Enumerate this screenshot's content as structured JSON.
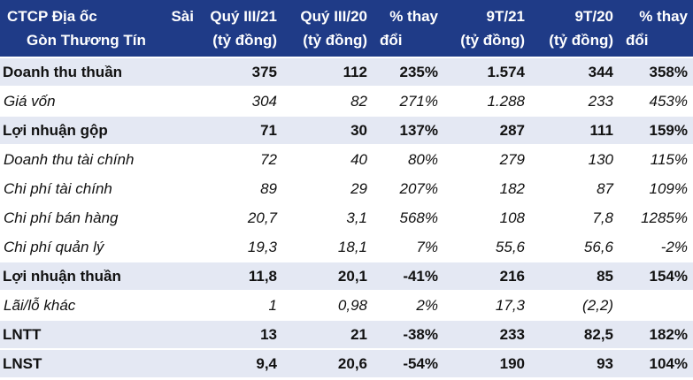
{
  "table": {
    "header": {
      "company_line1": "CTCP Địa ốc",
      "company_line1_right": "Sài",
      "company_line2": "Gòn Thương Tín",
      "columns": [
        {
          "line1": "Quý III/21",
          "line2": "(tỷ đồng)"
        },
        {
          "line1": "Quý III/20",
          "line2": "(tỷ đồng)"
        },
        {
          "line1": "% thay",
          "line2": "đổi"
        },
        {
          "line1": "9T/21",
          "line2": "(tỷ đồng)"
        },
        {
          "line1": "9T/20",
          "line2": "(tỷ đồng)"
        },
        {
          "line1": "% thay",
          "line2": "đổi"
        }
      ]
    },
    "rows": [
      {
        "label": "Doanh thu thuần",
        "style": "bold",
        "values": [
          "375",
          "112",
          "235%",
          "1.574",
          "344",
          "358%"
        ]
      },
      {
        "label": "Giá vốn",
        "style": "ital",
        "values": [
          "304",
          "82",
          "271%",
          "1.288",
          "233",
          "453%"
        ]
      },
      {
        "label": "Lợi nhuận gộp",
        "style": "bold",
        "values": [
          "71",
          "30",
          "137%",
          "287",
          "111",
          "159%"
        ]
      },
      {
        "label": "Doanh thu tài chính",
        "style": "ital",
        "values": [
          "72",
          "40",
          "80%",
          "279",
          "130",
          "115%"
        ]
      },
      {
        "label": "Chi phí tài chính",
        "style": "ital",
        "values": [
          "89",
          "29",
          "207%",
          "182",
          "87",
          "109%"
        ]
      },
      {
        "label": "Chi phí bán hàng",
        "style": "ital",
        "values": [
          "20,7",
          "3,1",
          "568%",
          "108",
          "7,8",
          "1285%"
        ]
      },
      {
        "label": "Chi phí quản lý",
        "style": "ital",
        "values": [
          "19,3",
          "18,1",
          "7%",
          "55,6",
          "56,6",
          "-2%"
        ]
      },
      {
        "label": "Lợi nhuận thuần",
        "style": "bold",
        "values": [
          "11,8",
          "20,1",
          "-41%",
          "216",
          "85",
          "154%"
        ]
      },
      {
        "label": "Lãi/lỗ khác",
        "style": "ital",
        "values": [
          "1",
          "0,98",
          "2%",
          "17,3",
          "(2,2)",
          ""
        ]
      },
      {
        "label": "LNTT",
        "style": "bold",
        "values": [
          "13",
          "21",
          "-38%",
          "233",
          "82,5",
          "182%"
        ]
      },
      {
        "label": "LNST",
        "style": "bold",
        "values": [
          "9,4",
          "20,6",
          "-54%",
          "190",
          "93",
          "104%"
        ]
      }
    ]
  },
  "colors": {
    "header_bg": "#1f3b87",
    "bold_row_bg": "#e4e8f3",
    "italic_row_bg": "#ffffff"
  }
}
